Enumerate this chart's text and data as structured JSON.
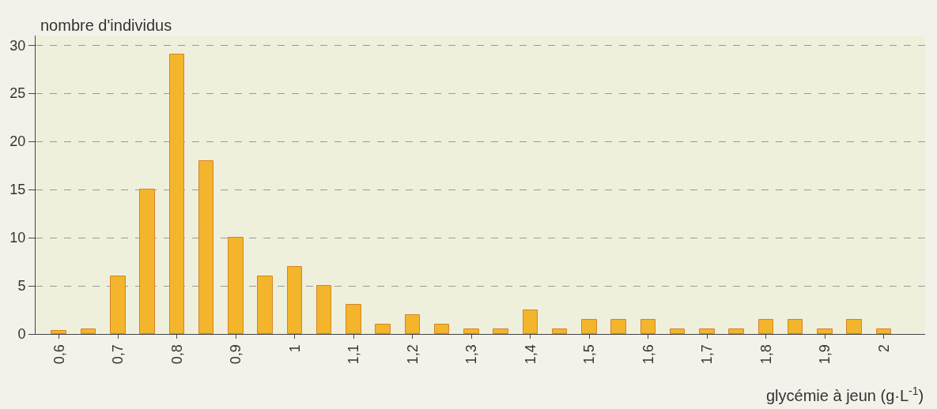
{
  "chart_data": {
    "type": "bar",
    "xlabel": "glycémie à jeun (g·L$^{-1}$)",
    "ylabel": "nombre d'individus",
    "x": [
      0.6,
      0.65,
      0.7,
      0.75,
      0.8,
      0.85,
      0.9,
      0.95,
      1,
      1.05,
      1.1,
      1.15,
      1.2,
      1.25,
      1.3,
      1.35,
      1.4,
      1.45,
      1.5,
      1.55,
      1.6,
      1.65,
      1.7,
      1.75,
      1.8,
      1.85,
      1.9,
      1.95,
      2
    ],
    "values": [
      0.3,
      0.5,
      6,
      15,
      29,
      18,
      10,
      6,
      7,
      5,
      3,
      1,
      2,
      1,
      0.5,
      0.5,
      2.5,
      0.5,
      1.5,
      1.5,
      1.5,
      0.5,
      0.5,
      0.5,
      1.5,
      1.5,
      0.5,
      1.5,
      0.5
    ],
    "color": "#f2b52c",
    "xlim": [
      0.56,
      2.07
    ],
    "xticks": [
      {
        "value": 0.6,
        "label": "0,6"
      },
      {
        "value": 0.7,
        "label": "0,7"
      },
      {
        "value": 0.8,
        "label": "0,8"
      },
      {
        "value": 0.9,
        "label": "0,9"
      },
      {
        "value": 1,
        "label": "1"
      },
      {
        "value": 1.1,
        "label": "1,1"
      },
      {
        "value": 1.2,
        "label": "1,2"
      },
      {
        "value": 1.3,
        "label": "1,3"
      },
      {
        "value": 1.4,
        "label": "1,4"
      },
      {
        "value": 1.5,
        "label": "1,5"
      },
      {
        "value": 1.6,
        "label": "1,6"
      },
      {
        "value": 1.7,
        "label": "1,7"
      },
      {
        "value": 1.8,
        "label": "1,8"
      },
      {
        "value": 1.9,
        "label": "1,9"
      },
      {
        "value": 2,
        "label": "2"
      }
    ],
    "ylim": [
      0,
      31
    ],
    "yticks": [
      0,
      5,
      10,
      15,
      20,
      25,
      30
    ],
    "grid": "y"
  }
}
